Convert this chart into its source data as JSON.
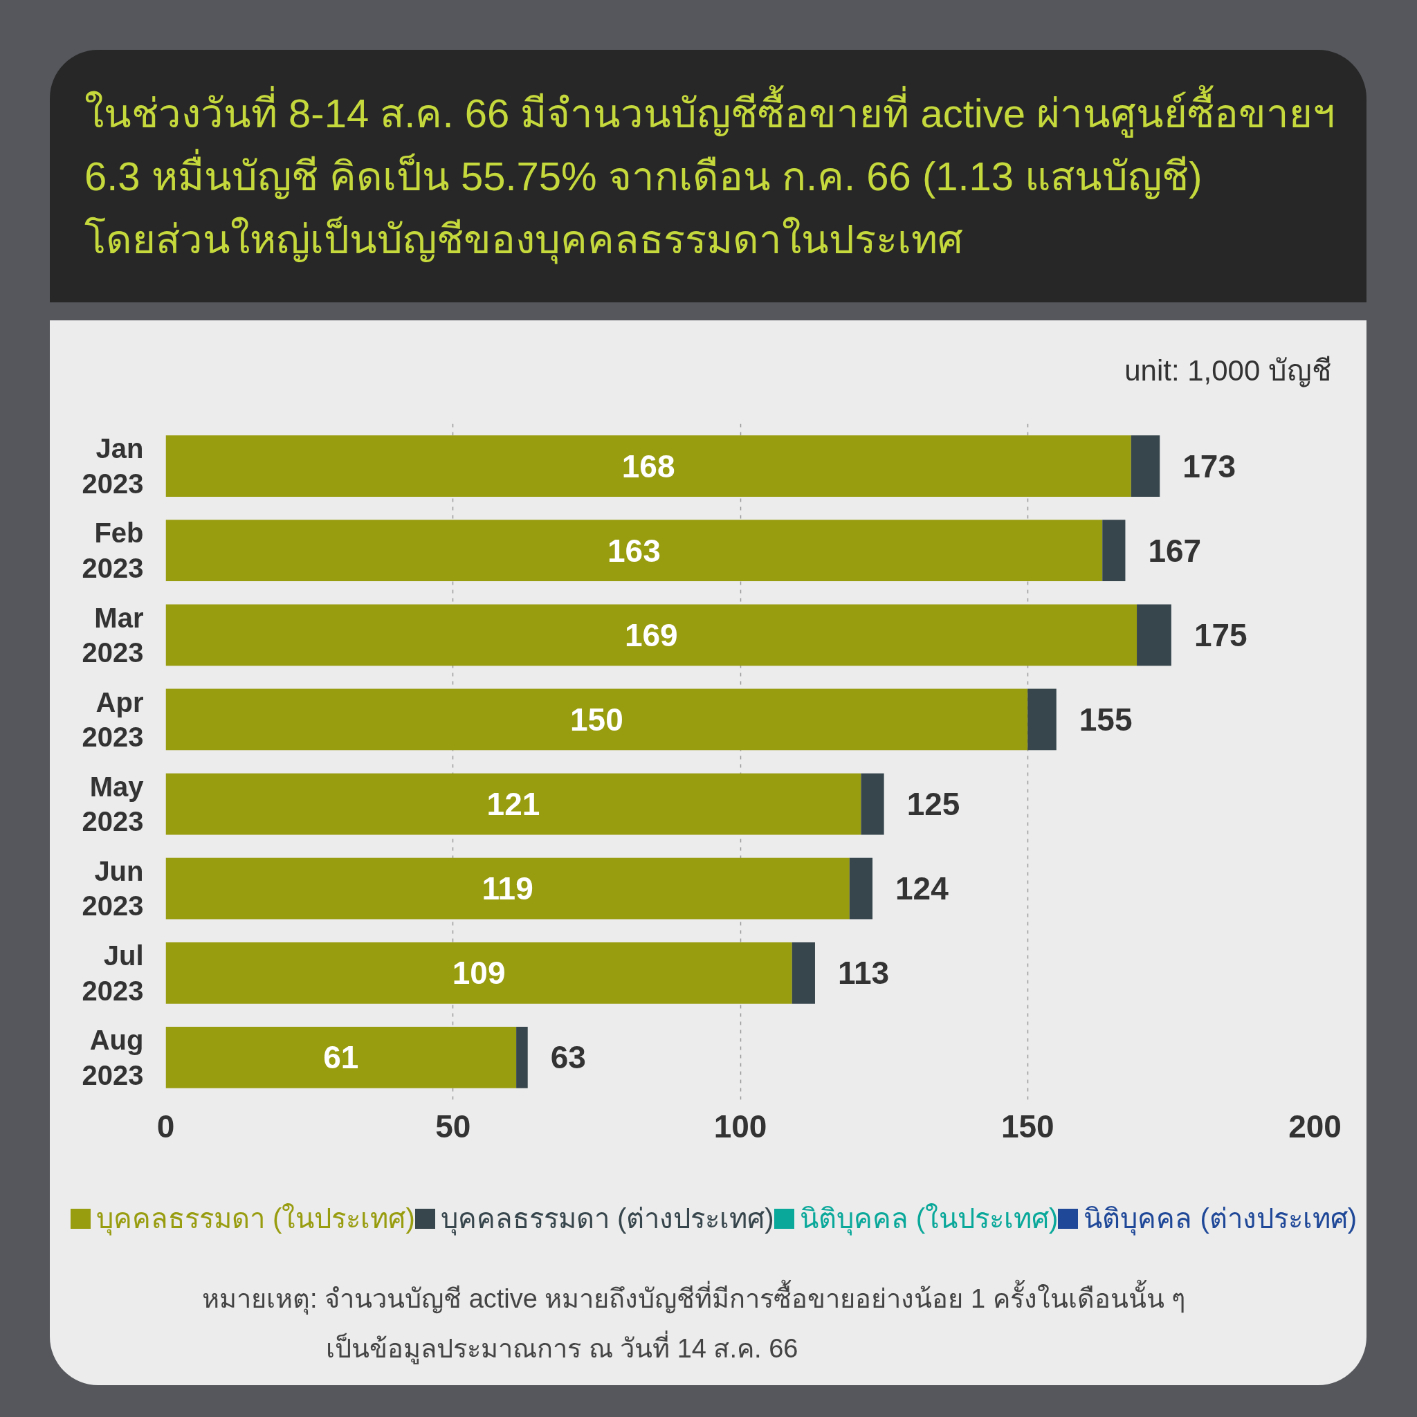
{
  "chart_data": {
    "type": "bar",
    "orientation": "horizontal",
    "stacked": true,
    "title": "ในช่วงวันที่ 8-14 ส.ค. 66 มีจำนวนบัญชีซื้อขายที่ active ผ่านศูนย์ซื้อขายฯ\n6.3 หมื่นบัญชี คิดเป็น 55.75% จากเดือน ก.ค. 66 (1.13 แสนบัญชี)\nโดยส่วนใหญ่เป็นบัญชีของบุคคลธรรมดาในประเทศ",
    "categories": [
      "Jan 2023",
      "Feb 2023",
      "Mar 2023",
      "Apr 2023",
      "May 2023",
      "Jun 2023",
      "Jul 2023",
      "Aug 2023"
    ],
    "series": [
      {
        "name": "บุคคลธรรมดา (ในประเทศ)",
        "color": "#989c0f",
        "values": [
          168,
          163,
          169,
          150,
          121,
          119,
          109,
          61
        ],
        "value_labels": [
          "168",
          "163",
          "169",
          "150",
          "121",
          "119",
          "109",
          "61"
        ]
      },
      {
        "name": "บุคคลธรรมดา (ต่างประเทศ)",
        "color": "#37464c",
        "values": [
          5,
          4,
          6,
          5,
          4,
          4,
          4,
          2
        ]
      },
      {
        "name": "นิติบุคคล (ในประเทศ)",
        "color": "#0aa89a",
        "values": [
          null,
          null,
          null,
          null,
          null,
          null,
          null,
          null
        ]
      },
      {
        "name": "นิติบุคคล (ต่างประเทศ)",
        "color": "#1f4898",
        "values": [
          null,
          null,
          null,
          null,
          null,
          null,
          null,
          null
        ]
      }
    ],
    "totals": [
      "173",
      "167",
      "175",
      "155",
      "125",
      "124",
      "113",
      "63"
    ],
    "xlim": [
      0,
      200
    ],
    "xticks": [
      0,
      50,
      100,
      150,
      200
    ],
    "grid": "x",
    "legend": "bottom",
    "annotations": [
      "unit: 1,000 บัญชี",
      "หมายเหตุ: จำนวนบัญชี active หมายถึงบัญชีที่มีการซื้อขายอย่างน้อย 1 ครั้งในเดือนนั้น ๆ\nเป็นข้อมูลประมาณการ ณ วันที่ 14 ส.ค. 66"
    ]
  }
}
